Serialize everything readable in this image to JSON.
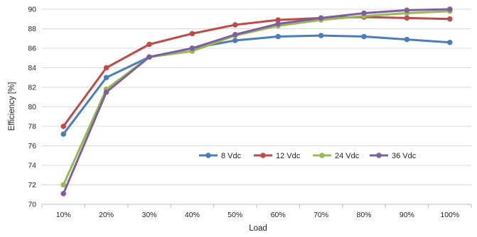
{
  "chart_data": {
    "type": "line",
    "title": "",
    "xlabel": "Load",
    "ylabel": "Efficiency [%]",
    "categories": [
      "10%",
      "20%",
      "30%",
      "40%",
      "50%",
      "60%",
      "70%",
      "80%",
      "90%",
      "100%"
    ],
    "ylim": [
      70,
      90
    ],
    "yticks": [
      70,
      72,
      74,
      76,
      78,
      80,
      82,
      84,
      86,
      88,
      90
    ],
    "grid": true,
    "legend_position": "center-right",
    "series": [
      {
        "name": "8 Vdc",
        "color": "#4a7ebb",
        "values": [
          77.2,
          83.0,
          85.1,
          86.0,
          86.8,
          87.2,
          87.3,
          87.2,
          86.9,
          86.6
        ]
      },
      {
        "name": "12 Vdc",
        "color": "#be4b48",
        "values": [
          78.0,
          84.0,
          86.4,
          87.5,
          88.4,
          88.9,
          89.1,
          89.2,
          89.1,
          89.0
        ]
      },
      {
        "name": "24 Vdc",
        "color": "#98b954",
        "values": [
          72.0,
          81.8,
          85.1,
          85.7,
          87.3,
          88.3,
          88.9,
          89.3,
          89.6,
          89.8
        ]
      },
      {
        "name": "36 Vdc",
        "color": "#7d5fa0",
        "values": [
          71.1,
          81.5,
          85.1,
          86.0,
          87.4,
          88.5,
          89.1,
          89.6,
          89.9,
          90.0
        ]
      }
    ]
  }
}
